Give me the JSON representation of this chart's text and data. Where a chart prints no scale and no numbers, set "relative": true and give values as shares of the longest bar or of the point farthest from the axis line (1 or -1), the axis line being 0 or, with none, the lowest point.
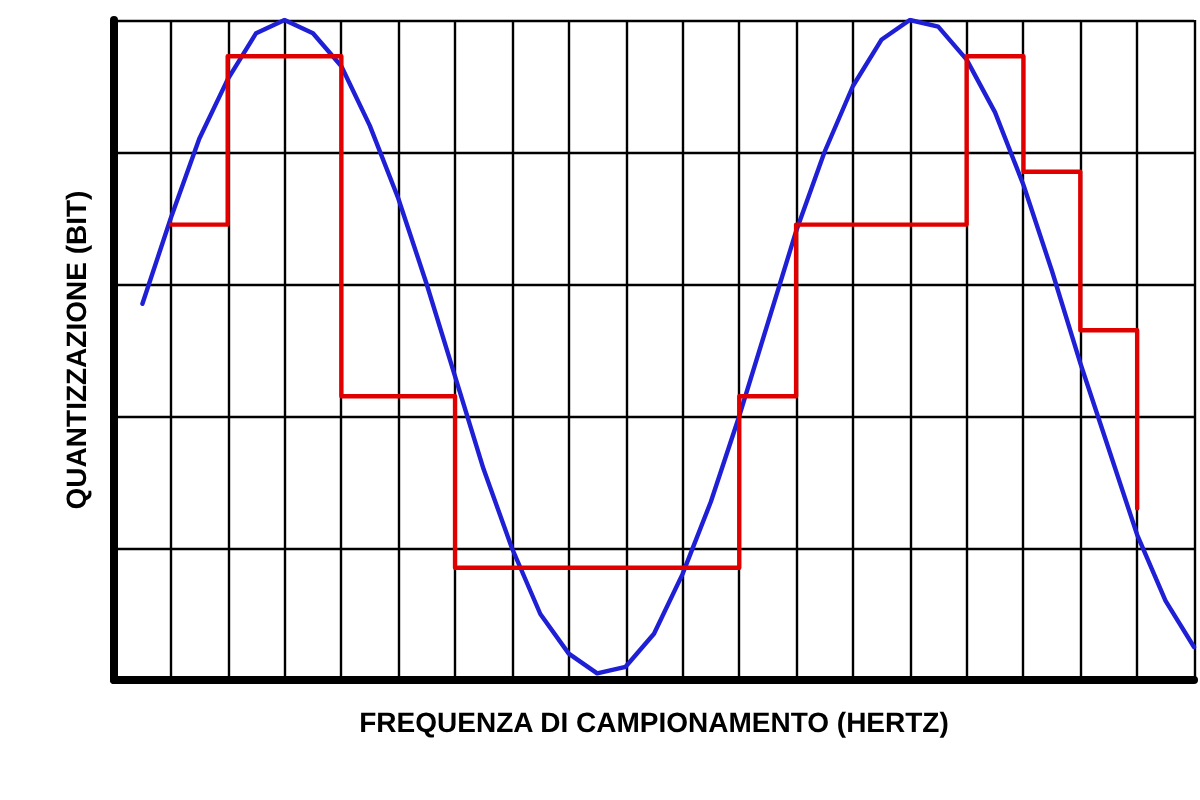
{
  "chart_data": {
    "type": "line",
    "relative": true,
    "xlabel": "FREQUENZA DI CAMPIONAMENTO (HERTZ)",
    "ylabel": "QUANTIZZAZIONE (BIT)",
    "categories": [
      null,
      null,
      null,
      null,
      null,
      null,
      null,
      null,
      null,
      null,
      null,
      null,
      null,
      null,
      null,
      null,
      null,
      null,
      null,
      null,
      null,
      null,
      null,
      null,
      null,
      null,
      null,
      null,
      null,
      null,
      null,
      null,
      null,
      null,
      null,
      null,
      null,
      null,
      null
    ],
    "series": [
      {
        "color": "#1f1fd6",
        "values": [
          null,
          0.57,
          0.7,
          0.82,
          0.91,
          0.98,
          1.0,
          0.98,
          0.93,
          0.84,
          0.73,
          0.6,
          0.46,
          0.32,
          0.2,
          0.1,
          0.04,
          0.01,
          0.02,
          0.07,
          0.16,
          0.27,
          0.4,
          0.54,
          0.68,
          0.8,
          0.9,
          0.97,
          1.0,
          0.99,
          0.94,
          0.86,
          0.75,
          0.62,
          0.48,
          0.35,
          0.22,
          0.12,
          0.05
        ]
      },
      {
        "type": "step",
        "color": "#e00000",
        "values": [
          null,
          null,
          0.69,
          0.69,
          0.945,
          0.945,
          0.945,
          0.945,
          0.43,
          0.43,
          0.43,
          0.43,
          0.17,
          0.17,
          0.17,
          0.17,
          0.17,
          0.17,
          0.17,
          0.17,
          0.17,
          0.17,
          0.43,
          0.43,
          0.69,
          0.69,
          0.69,
          0.69,
          0.69,
          0.69,
          0.945,
          0.945,
          0.77,
          0.77,
          0.53,
          0.53,
          0.26,
          null,
          null
        ]
      }
    ],
    "grid": true,
    "marker": "none",
    "line_style": "solid"
  }
}
